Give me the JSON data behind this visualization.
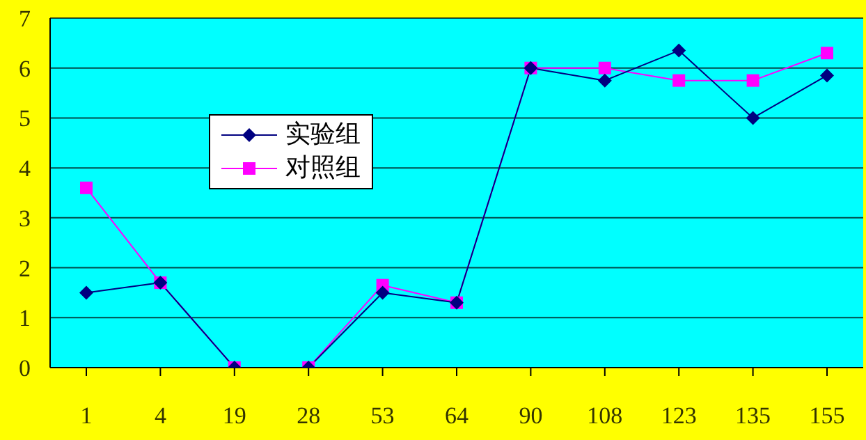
{
  "chart_data": {
    "type": "line",
    "categories": [
      "1",
      "4",
      "19",
      "28",
      "53",
      "64",
      "90",
      "108",
      "123",
      "135",
      "155"
    ],
    "series": [
      {
        "name": "实验组",
        "color": "#000080",
        "marker": "diamond",
        "values": [
          1.5,
          1.7,
          0,
          0,
          1.5,
          1.3,
          6.0,
          5.75,
          6.35,
          5.0,
          5.85
        ]
      },
      {
        "name": "对照组",
        "color": "#ff00ff",
        "marker": "square",
        "values": [
          3.6,
          1.7,
          0,
          0,
          1.65,
          1.3,
          6.0,
          6.0,
          5.75,
          5.75,
          6.3
        ]
      }
    ],
    "ylim": [
      0,
      7
    ],
    "yticks": [
      0,
      1,
      2,
      3,
      4,
      5,
      6,
      7
    ],
    "grid": "y",
    "legend": "top left"
  }
}
